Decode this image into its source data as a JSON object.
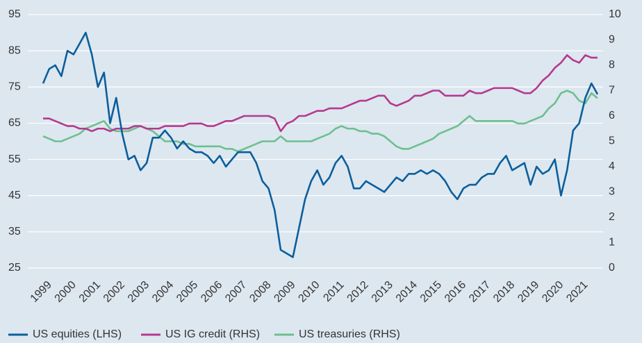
{
  "chart_data": {
    "type": "line",
    "x": [
      1999,
      1999.25,
      1999.5,
      1999.75,
      2000,
      2000.25,
      2000.5,
      2000.75,
      2001,
      2001.25,
      2001.5,
      2001.75,
      2002,
      2002.25,
      2002.5,
      2002.75,
      2003,
      2003.25,
      2003.5,
      2003.75,
      2004,
      2004.25,
      2004.5,
      2004.75,
      2005,
      2005.25,
      2005.5,
      2005.75,
      2006,
      2006.25,
      2006.5,
      2006.75,
      2007,
      2007.25,
      2007.5,
      2007.75,
      2008,
      2008.25,
      2008.5,
      2008.75,
      2009,
      2009.25,
      2009.5,
      2009.75,
      2010,
      2010.25,
      2010.5,
      2010.75,
      2011,
      2011.25,
      2011.5,
      2011.75,
      2012,
      2012.25,
      2012.5,
      2012.75,
      2013,
      2013.25,
      2013.5,
      2013.75,
      2014,
      2014.25,
      2014.5,
      2014.75,
      2015,
      2015.25,
      2015.5,
      2015.75,
      2016,
      2016.25,
      2016.5,
      2016.75,
      2017,
      2017.25,
      2017.5,
      2017.75,
      2018,
      2018.25,
      2018.5,
      2018.75,
      2019,
      2019.25,
      2019.5,
      2019.75,
      2020,
      2020.25,
      2020.5,
      2020.75,
      2021,
      2021.25,
      2021.5,
      2021.75
    ],
    "xlim": [
      1998.8,
      2022
    ],
    "xticks": [
      1999,
      2000,
      2001,
      2002,
      2003,
      2004,
      2005,
      2006,
      2007,
      2008,
      2009,
      2010,
      2011,
      2012,
      2013,
      2014,
      2015,
      2016,
      2017,
      2018,
      2019,
      2020,
      2021
    ],
    "ylim": [
      25,
      95
    ],
    "yticks": [
      25,
      35,
      45,
      55,
      65,
      75,
      85,
      95
    ],
    "y2lim": [
      0,
      10
    ],
    "y2ticks": [
      0,
      1,
      2,
      3,
      4,
      5,
      6,
      7,
      8,
      9,
      10
    ],
    "grid": true,
    "legend": "bottom",
    "series": [
      {
        "name": "US equities (LHS)",
        "color": "#0b5e9c",
        "values": [
          76,
          80,
          81,
          78,
          85,
          84,
          87,
          90,
          84,
          75,
          79,
          65,
          72,
          62,
          55,
          56,
          52,
          54,
          61,
          61,
          63,
          61,
          58,
          60,
          58,
          57,
          57,
          56,
          54,
          56,
          53,
          55,
          57,
          57,
          57,
          54,
          49,
          47,
          41,
          30,
          29,
          28,
          36,
          44,
          49,
          52,
          48,
          50,
          54,
          56,
          53,
          47,
          47,
          49,
          48,
          47,
          46,
          48,
          50,
          49,
          51,
          51,
          52,
          51,
          52,
          51,
          49,
          46,
          44,
          47,
          48,
          48,
          50,
          51,
          51,
          54,
          56,
          52,
          53,
          54,
          48,
          53,
          51,
          52,
          55,
          45,
          52,
          63,
          65,
          72,
          76,
          73
        ]
      },
      {
        "name": "US IG credit (RHS)",
        "color": "#b5398f",
        "axis": "y2",
        "values": [
          5.9,
          5.9,
          5.8,
          5.7,
          5.6,
          5.6,
          5.5,
          5.5,
          5.4,
          5.5,
          5.5,
          5.4,
          5.5,
          5.5,
          5.5,
          5.6,
          5.6,
          5.5,
          5.5,
          5.5,
          5.6,
          5.6,
          5.6,
          5.6,
          5.7,
          5.7,
          5.7,
          5.6,
          5.6,
          5.7,
          5.8,
          5.8,
          5.9,
          6.0,
          6.0,
          6.0,
          6.0,
          6.0,
          5.9,
          5.4,
          5.7,
          5.8,
          6.0,
          6.0,
          6.1,
          6.2,
          6.2,
          6.3,
          6.3,
          6.3,
          6.4,
          6.5,
          6.6,
          6.6,
          6.7,
          6.8,
          6.8,
          6.5,
          6.4,
          6.5,
          6.6,
          6.8,
          6.8,
          6.9,
          7.0,
          7.0,
          6.8,
          6.8,
          6.8,
          6.8,
          7.0,
          6.9,
          6.9,
          7.0,
          7.1,
          7.1,
          7.1,
          7.1,
          7.0,
          6.9,
          6.9,
          7.1,
          7.4,
          7.6,
          7.9,
          8.1,
          8.4,
          8.2,
          8.1,
          8.4,
          8.3,
          8.3
        ]
      },
      {
        "name": "US treasuries (RHS)",
        "color": "#6cc08f",
        "axis": "y2",
        "values": [
          5.2,
          5.1,
          5.0,
          5.0,
          5.1,
          5.2,
          5.3,
          5.5,
          5.6,
          5.7,
          5.8,
          5.5,
          5.4,
          5.4,
          5.4,
          5.5,
          5.6,
          5.5,
          5.4,
          5.2,
          5.0,
          5.0,
          5.0,
          4.9,
          4.9,
          4.8,
          4.8,
          4.8,
          4.8,
          4.8,
          4.7,
          4.7,
          4.6,
          4.7,
          4.8,
          4.9,
          5.0,
          5.0,
          5.0,
          5.2,
          5.0,
          5.0,
          5.0,
          5.0,
          5.0,
          5.1,
          5.2,
          5.3,
          5.5,
          5.6,
          5.5,
          5.5,
          5.4,
          5.4,
          5.3,
          5.3,
          5.2,
          5.0,
          4.8,
          4.7,
          4.7,
          4.8,
          4.9,
          5.0,
          5.1,
          5.3,
          5.4,
          5.5,
          5.6,
          5.8,
          6.0,
          5.8,
          5.8,
          5.8,
          5.8,
          5.8,
          5.8,
          5.8,
          5.7,
          5.7,
          5.8,
          5.9,
          6.0,
          6.3,
          6.5,
          6.9,
          7.0,
          6.9,
          6.6,
          6.5,
          6.9,
          6.7
        ]
      }
    ]
  }
}
